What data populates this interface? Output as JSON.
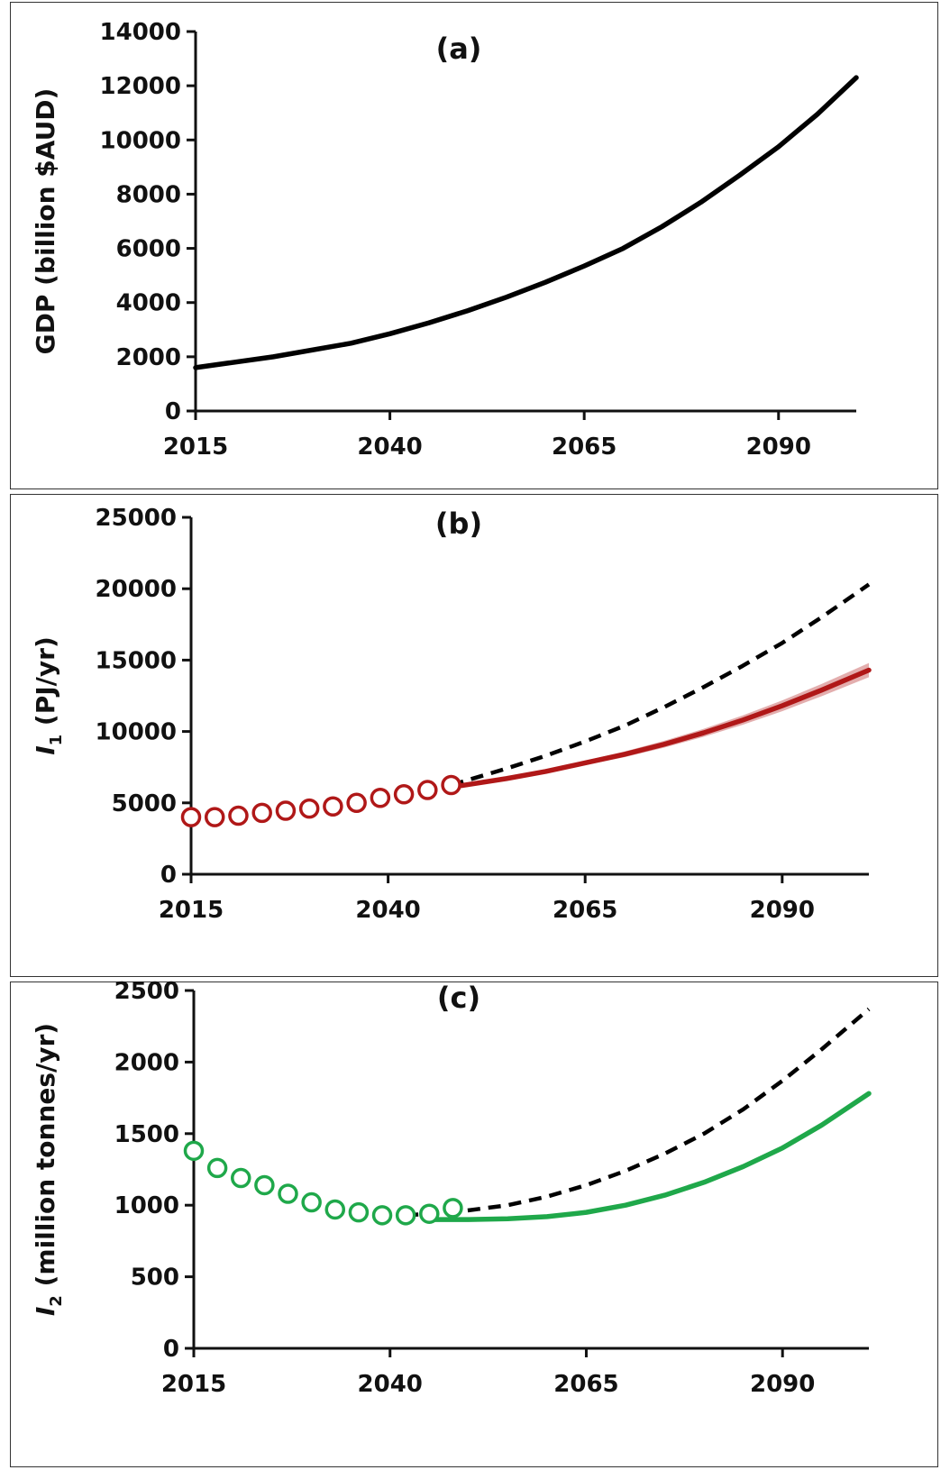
{
  "chart_data": [
    {
      "type": "line",
      "panel_label": "(a)",
      "ylabel": "GDP (billion $AUD)",
      "xlim": [
        2015,
        2100
      ],
      "ylim": [
        0,
        14000
      ],
      "x_ticks": [
        2015,
        2040,
        2065,
        2090
      ],
      "y_ticks": [
        0,
        2000,
        4000,
        6000,
        8000,
        10000,
        12000,
        14000
      ],
      "series": [
        {
          "style": "solid",
          "color": "#000000",
          "x": [
            2015,
            2025,
            2035,
            2040,
            2045,
            2050,
            2055,
            2060,
            2065,
            2070,
            2075,
            2080,
            2085,
            2090,
            2095,
            2100
          ],
          "y": [
            1600,
            2000,
            2500,
            2850,
            3250,
            3700,
            4200,
            4750,
            5350,
            6000,
            6800,
            7700,
            8700,
            9750,
            10950,
            12300
          ]
        }
      ]
    },
    {
      "type": "line",
      "panel_label": "(b)",
      "ylabel_var": "I",
      "ylabel_sub": "1",
      "ylabel_rest": " (PJ/yr)",
      "xlim": [
        2015,
        2101
      ],
      "ylim": [
        0,
        25000
      ],
      "x_ticks": [
        2015,
        2040,
        2065,
        2090
      ],
      "y_ticks": [
        0,
        5000,
        10000,
        15000,
        20000,
        25000
      ],
      "series": [
        {
          "style": "markers",
          "color": "#b01818",
          "x": [
            2015,
            2018,
            2021,
            2024,
            2027,
            2030,
            2033,
            2036,
            2039,
            2042,
            2045,
            2048
          ],
          "y": [
            4000,
            4000,
            4100,
            4300,
            4450,
            4600,
            4750,
            5000,
            5350,
            5600,
            5900,
            6250
          ]
        },
        {
          "style": "dashed",
          "color": "#000000",
          "x": [
            2048,
            2055,
            2060,
            2065,
            2070,
            2075,
            2080,
            2085,
            2090,
            2095,
            2101
          ],
          "y": [
            6250,
            7400,
            8300,
            9300,
            10400,
            11700,
            13100,
            14600,
            16200,
            18000,
            20300
          ]
        },
        {
          "style": "solid-band",
          "color": "#b01818",
          "x": [
            2048,
            2055,
            2060,
            2065,
            2070,
            2075,
            2080,
            2085,
            2090,
            2095,
            2101
          ],
          "y": [
            6100,
            6700,
            7200,
            7800,
            8400,
            9100,
            9900,
            10800,
            11800,
            12900,
            14300
          ],
          "band_half_width": [
            0,
            80,
            120,
            160,
            200,
            240,
            280,
            330,
            380,
            430,
            500
          ]
        }
      ]
    },
    {
      "type": "line",
      "panel_label": "(c)",
      "ylabel_var": "I",
      "ylabel_sub": "2",
      "ylabel_rest": " (million tonnes/yr)",
      "xlim": [
        2015,
        2101
      ],
      "ylim": [
        0,
        2500
      ],
      "x_ticks": [
        2015,
        2040,
        2065,
        2090
      ],
      "y_ticks": [
        0,
        500,
        1000,
        1500,
        2000,
        2500
      ],
      "series": [
        {
          "style": "markers",
          "color": "#1fa84a",
          "x": [
            2015,
            2018,
            2021,
            2024,
            2027,
            2030,
            2033,
            2036,
            2039,
            2042,
            2045,
            2048
          ],
          "y": [
            1380,
            1260,
            1190,
            1140,
            1080,
            1020,
            970,
            950,
            930,
            930,
            940,
            980
          ]
        },
        {
          "style": "dashed",
          "color": "#000000",
          "x": [
            2042,
            2048,
            2055,
            2060,
            2065,
            2070,
            2075,
            2080,
            2085,
            2090,
            2095,
            2101
          ],
          "y": [
            930,
            950,
            1000,
            1060,
            1140,
            1240,
            1360,
            1500,
            1670,
            1870,
            2090,
            2370
          ]
        },
        {
          "style": "solid-band",
          "color": "#1fa84a",
          "x": [
            2045,
            2050,
            2055,
            2060,
            2065,
            2070,
            2075,
            2080,
            2085,
            2090,
            2095,
            2101
          ],
          "y": [
            900,
            900,
            905,
            920,
            950,
            1000,
            1070,
            1160,
            1270,
            1400,
            1560,
            1780
          ],
          "band_half_width": [
            0,
            8,
            10,
            12,
            14,
            15,
            16,
            17,
            18,
            19,
            20,
            20
          ]
        }
      ]
    }
  ]
}
